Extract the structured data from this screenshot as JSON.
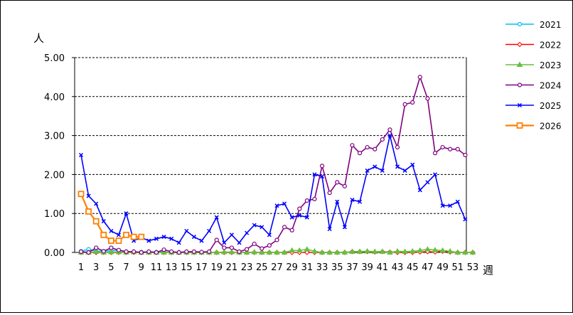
{
  "chart_data": {
    "type": "line",
    "ylabel": "人",
    "xlabel": "週",
    "ylim": [
      0,
      5
    ],
    "xlim": [
      1,
      53
    ],
    "grid": "horizontal dashed",
    "legend_position": "right",
    "yticks": [
      "0.00",
      "1.00",
      "2.00",
      "3.00",
      "4.00",
      "5.00"
    ],
    "xticks": [
      "1",
      "3",
      "5",
      "7",
      "9",
      "11",
      "13",
      "15",
      "17",
      "19",
      "21",
      "23",
      "25",
      "27",
      "29",
      "31",
      "33",
      "35",
      "37",
      "39",
      "41",
      "43",
      "45",
      "47",
      "49",
      "51",
      "53"
    ],
    "series": [
      {
        "name": "2021",
        "color": "#00c0f0",
        "marker": "circle",
        "values": [
          0.03,
          0.08,
          0.03,
          0.03,
          0.05,
          0.05,
          0.02,
          0.01,
          0.01,
          0.01,
          0.01,
          0.01,
          0.0,
          0.0,
          0.0,
          0.0,
          0.0
        ]
      },
      {
        "name": "2022",
        "color": "#ff0000",
        "marker": "diamond",
        "values": [
          0,
          0,
          0,
          0,
          0,
          0,
          0,
          0,
          0,
          0,
          0,
          0,
          0,
          0,
          0,
          0,
          0,
          0,
          0,
          0,
          0,
          0,
          0,
          0,
          0,
          0,
          0,
          0,
          0,
          0,
          0,
          0,
          0,
          0,
          0,
          0,
          0.02,
          0.02,
          0.02,
          0.01,
          0.02,
          0.01,
          0,
          0,
          0,
          0.01,
          0.02,
          0.01,
          0.03,
          0.01,
          0,
          0,
          0
        ]
      },
      {
        "name": "2023",
        "color": "#66c040",
        "marker": "triangle",
        "values": [
          0,
          0,
          0.02,
          0,
          0.01,
          0.01,
          0,
          0.01,
          0,
          0,
          0,
          0,
          0,
          0,
          0,
          0,
          0,
          0,
          0,
          0.01,
          0.01,
          0,
          0,
          0.01,
          0,
          0,
          0,
          0,
          0.05,
          0.05,
          0.08,
          0.03,
          0,
          0,
          0,
          0,
          0.02,
          0.02,
          0.03,
          0.02,
          0.02,
          0,
          0.03,
          0.02,
          0.03,
          0.05,
          0.08,
          0.06,
          0.05,
          0.03,
          0,
          0,
          0
        ]
      },
      {
        "name": "2024",
        "color": "#800080",
        "marker": "circle",
        "values": [
          0.02,
          0,
          0.12,
          0.03,
          0.12,
          0.06,
          0.02,
          0.02,
          0,
          0.02,
          0,
          0.07,
          0.02,
          0,
          0.02,
          0.02,
          0.01,
          0.02,
          0.32,
          0.12,
          0.12,
          0.02,
          0.08,
          0.22,
          0.1,
          0.18,
          0.32,
          0.65,
          0.57,
          1.12,
          1.33,
          1.37,
          2.22,
          1.53,
          1.8,
          1.7,
          2.75,
          2.55,
          2.7,
          2.65,
          2.9,
          3.15,
          2.7,
          3.8,
          3.85,
          4.5,
          3.95,
          2.55,
          2.7,
          2.65,
          2.65,
          2.5
        ]
      },
      {
        "name": "2025",
        "color": "#0000ff",
        "marker": "x",
        "values": [
          2.5,
          1.45,
          1.25,
          0.8,
          0.55,
          0.45,
          1.0,
          0.3,
          0.38,
          0.3,
          0.35,
          0.4,
          0.35,
          0.25,
          0.55,
          0.4,
          0.3,
          0.55,
          0.9,
          0.25,
          0.45,
          0.25,
          0.5,
          0.7,
          0.65,
          0.45,
          1.2,
          1.25,
          0.9,
          0.95,
          0.9,
          2.0,
          1.95,
          0.6,
          1.3,
          0.65,
          1.35,
          1.3,
          2.1,
          2.2,
          2.1,
          3.0,
          2.2,
          2.1,
          2.25,
          1.6,
          1.8,
          2.0,
          1.2,
          1.2,
          1.3,
          0.85
        ]
      },
      {
        "name": "2026",
        "color": "#ff8000",
        "marker": "square",
        "values": [
          1.5,
          1.05,
          0.8,
          0.45,
          0.3,
          0.3,
          0.45,
          0.4,
          0.4
        ]
      }
    ]
  }
}
